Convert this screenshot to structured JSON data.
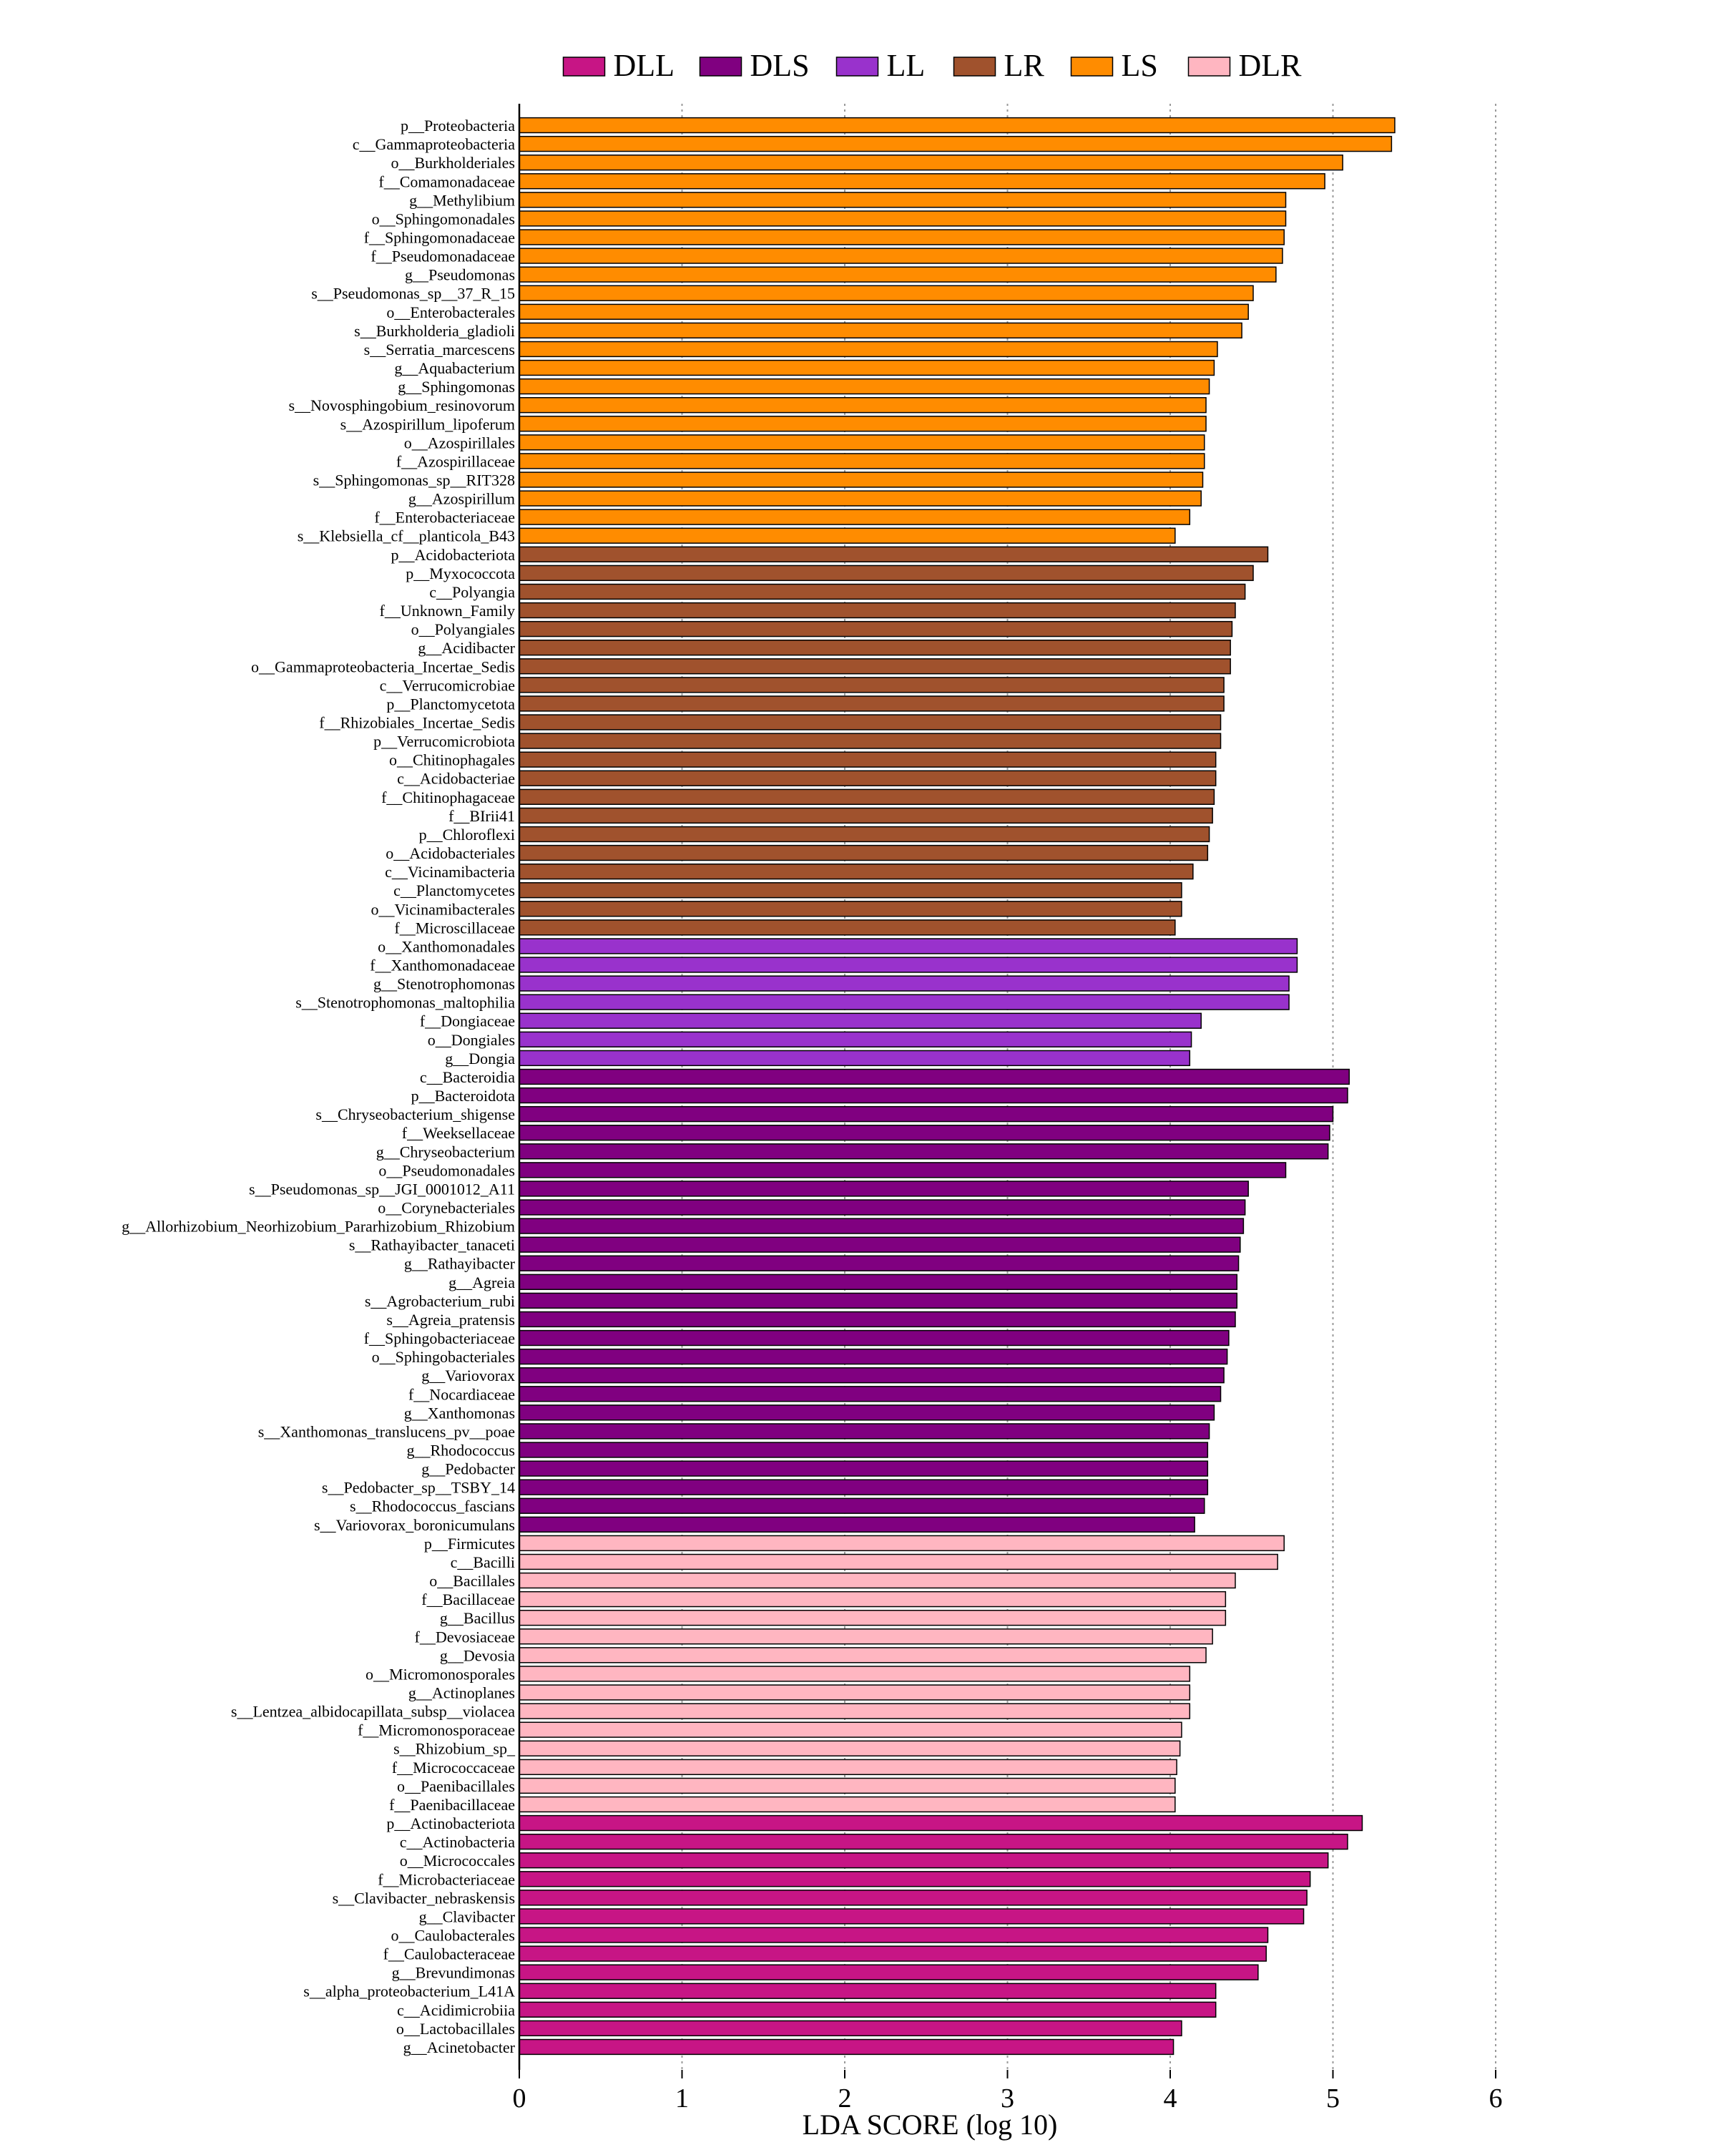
{
  "chart_data": {
    "type": "bar",
    "orientation": "horizontal",
    "xlabel": "LDA SCORE (log 10)",
    "xlim": [
      0,
      6
    ],
    "xticks": [
      0,
      1,
      2,
      3,
      4,
      5,
      6
    ],
    "grid": "vertical dotted",
    "legend_position": "top-center",
    "legend": [
      {
        "name": "DLL",
        "color": "#C71585"
      },
      {
        "name": "DLS",
        "color": "#800080"
      },
      {
        "name": "LL",
        "color": "#9932CC"
      },
      {
        "name": "LR",
        "color": "#A0522D"
      },
      {
        "name": "LS",
        "color": "#FF8C00"
      },
      {
        "name": "DLR",
        "color": "#FFB6C1"
      }
    ],
    "bars": [
      {
        "label": "p__Proteobacteria",
        "group": "LS",
        "value": 5.38
      },
      {
        "label": "c__Gammaproteobacteria",
        "group": "LS",
        "value": 5.36
      },
      {
        "label": "o__Burkholderiales",
        "group": "LS",
        "value": 5.06
      },
      {
        "label": "f__Comamonadaceae",
        "group": "LS",
        "value": 4.95
      },
      {
        "label": "g__Methylibium",
        "group": "LS",
        "value": 4.71
      },
      {
        "label": "o__Sphingomonadales",
        "group": "LS",
        "value": 4.71
      },
      {
        "label": "f__Sphingomonadaceae",
        "group": "LS",
        "value": 4.7
      },
      {
        "label": "f__Pseudomonadaceae",
        "group": "LS",
        "value": 4.69
      },
      {
        "label": "g__Pseudomonas",
        "group": "LS",
        "value": 4.65
      },
      {
        "label": "s__Pseudomonas_sp__37_R_15",
        "group": "LS",
        "value": 4.51
      },
      {
        "label": "o__Enterobacterales",
        "group": "LS",
        "value": 4.48
      },
      {
        "label": "s__Burkholderia_gladioli",
        "group": "LS",
        "value": 4.44
      },
      {
        "label": "s__Serratia_marcescens",
        "group": "LS",
        "value": 4.29
      },
      {
        "label": "g__Aquabacterium",
        "group": "LS",
        "value": 4.27
      },
      {
        "label": "g__Sphingomonas",
        "group": "LS",
        "value": 4.24
      },
      {
        "label": "s__Novosphingobium_resinovorum",
        "group": "LS",
        "value": 4.22
      },
      {
        "label": "s__Azospirillum_lipoferum",
        "group": "LS",
        "value": 4.22
      },
      {
        "label": "o__Azospirillales",
        "group": "LS",
        "value": 4.21
      },
      {
        "label": "f__Azospirillaceae",
        "group": "LS",
        "value": 4.21
      },
      {
        "label": "s__Sphingomonas_sp__RIT328",
        "group": "LS",
        "value": 4.2
      },
      {
        "label": "g__Azospirillum",
        "group": "LS",
        "value": 4.19
      },
      {
        "label": "f__Enterobacteriaceae",
        "group": "LS",
        "value": 4.12
      },
      {
        "label": "s__Klebsiella_cf__planticola_B43",
        "group": "LS",
        "value": 4.03
      },
      {
        "label": "p__Acidobacteriota",
        "group": "LR",
        "value": 4.6
      },
      {
        "label": "p__Myxococcota",
        "group": "LR",
        "value": 4.51
      },
      {
        "label": "c__Polyangia",
        "group": "LR",
        "value": 4.46
      },
      {
        "label": "f__Unknown_Family",
        "group": "LR",
        "value": 4.4
      },
      {
        "label": "o__Polyangiales",
        "group": "LR",
        "value": 4.38
      },
      {
        "label": "g__Acidibacter",
        "group": "LR",
        "value": 4.37
      },
      {
        "label": "o__Gammaproteobacteria_Incertae_Sedis",
        "group": "LR",
        "value": 4.37
      },
      {
        "label": "c__Verrucomicrobiae",
        "group": "LR",
        "value": 4.33
      },
      {
        "label": "p__Planctomycetota",
        "group": "LR",
        "value": 4.33
      },
      {
        "label": "f__Rhizobiales_Incertae_Sedis",
        "group": "LR",
        "value": 4.31
      },
      {
        "label": "p__Verrucomicrobiota",
        "group": "LR",
        "value": 4.31
      },
      {
        "label": "o__Chitinophagales",
        "group": "LR",
        "value": 4.28
      },
      {
        "label": "c__Acidobacteriae",
        "group": "LR",
        "value": 4.28
      },
      {
        "label": "f__Chitinophagaceae",
        "group": "LR",
        "value": 4.27
      },
      {
        "label": "f__BIrii41",
        "group": "LR",
        "value": 4.26
      },
      {
        "label": "p__Chloroflexi",
        "group": "LR",
        "value": 4.24
      },
      {
        "label": "o__Acidobacteriales",
        "group": "LR",
        "value": 4.23
      },
      {
        "label": "c__Vicinamibacteria",
        "group": "LR",
        "value": 4.14
      },
      {
        "label": "c__Planctomycetes",
        "group": "LR",
        "value": 4.07
      },
      {
        "label": "o__Vicinamibacterales",
        "group": "LR",
        "value": 4.07
      },
      {
        "label": "f__Microscillaceae",
        "group": "LR",
        "value": 4.03
      },
      {
        "label": "o__Xanthomonadales",
        "group": "LL",
        "value": 4.78
      },
      {
        "label": "f__Xanthomonadaceae",
        "group": "LL",
        "value": 4.78
      },
      {
        "label": "g__Stenotrophomonas",
        "group": "LL",
        "value": 4.73
      },
      {
        "label": "s__Stenotrophomonas_maltophilia",
        "group": "LL",
        "value": 4.73
      },
      {
        "label": "f__Dongiaceae",
        "group": "LL",
        "value": 4.19
      },
      {
        "label": "o__Dongiales",
        "group": "LL",
        "value": 4.13
      },
      {
        "label": "g__Dongia",
        "group": "LL",
        "value": 4.12
      },
      {
        "label": "c__Bacteroidia",
        "group": "DLS",
        "value": 5.1
      },
      {
        "label": "p__Bacteroidota",
        "group": "DLS",
        "value": 5.09
      },
      {
        "label": "s__Chryseobacterium_shigense",
        "group": "DLS",
        "value": 5.0
      },
      {
        "label": "f__Weeksellaceae",
        "group": "DLS",
        "value": 4.98
      },
      {
        "label": "g__Chryseobacterium",
        "group": "DLS",
        "value": 4.97
      },
      {
        "label": "o__Pseudomonadales",
        "group": "DLS",
        "value": 4.71
      },
      {
        "label": "s__Pseudomonas_sp__JGI_0001012_A11",
        "group": "DLS",
        "value": 4.48
      },
      {
        "label": "o__Corynebacteriales",
        "group": "DLS",
        "value": 4.46
      },
      {
        "label": "g__Allorhizobium_Neorhizobium_Pararhizobium_Rhizobium",
        "group": "DLS",
        "value": 4.45
      },
      {
        "label": "s__Rathayibacter_tanaceti",
        "group": "DLS",
        "value": 4.43
      },
      {
        "label": "g__Rathayibacter",
        "group": "DLS",
        "value": 4.42
      },
      {
        "label": "g__Agreia",
        "group": "DLS",
        "value": 4.41
      },
      {
        "label": "s__Agrobacterium_rubi",
        "group": "DLS",
        "value": 4.41
      },
      {
        "label": "s__Agreia_pratensis",
        "group": "DLS",
        "value": 4.4
      },
      {
        "label": "f__Sphingobacteriaceae",
        "group": "DLS",
        "value": 4.36
      },
      {
        "label": "o__Sphingobacteriales",
        "group": "DLS",
        "value": 4.35
      },
      {
        "label": "g__Variovorax",
        "group": "DLS",
        "value": 4.33
      },
      {
        "label": "f__Nocardiaceae",
        "group": "DLS",
        "value": 4.31
      },
      {
        "label": "g__Xanthomonas",
        "group": "DLS",
        "value": 4.27
      },
      {
        "label": "s__Xanthomonas_translucens_pv__poae",
        "group": "DLS",
        "value": 4.24
      },
      {
        "label": "g__Rhodococcus",
        "group": "DLS",
        "value": 4.23
      },
      {
        "label": "g__Pedobacter",
        "group": "DLS",
        "value": 4.23
      },
      {
        "label": "s__Pedobacter_sp__TSBY_14",
        "group": "DLS",
        "value": 4.23
      },
      {
        "label": "s__Rhodococcus_fascians",
        "group": "DLS",
        "value": 4.21
      },
      {
        "label": "s__Variovorax_boronicumulans",
        "group": "DLS",
        "value": 4.15
      },
      {
        "label": "p__Firmicutes",
        "group": "DLR",
        "value": 4.7
      },
      {
        "label": "c__Bacilli",
        "group": "DLR",
        "value": 4.66
      },
      {
        "label": "o__Bacillales",
        "group": "DLR",
        "value": 4.4
      },
      {
        "label": "f__Bacillaceae",
        "group": "DLR",
        "value": 4.34
      },
      {
        "label": "g__Bacillus",
        "group": "DLR",
        "value": 4.34
      },
      {
        "label": "f__Devosiaceae",
        "group": "DLR",
        "value": 4.26
      },
      {
        "label": "g__Devosia",
        "group": "DLR",
        "value": 4.22
      },
      {
        "label": "o__Micromonosporales",
        "group": "DLR",
        "value": 4.12
      },
      {
        "label": "g__Actinoplanes",
        "group": "DLR",
        "value": 4.12
      },
      {
        "label": "s__Lentzea_albidocapillata_subsp__violacea",
        "group": "DLR",
        "value": 4.12
      },
      {
        "label": "f__Micromonosporaceae",
        "group": "DLR",
        "value": 4.07
      },
      {
        "label": "s__Rhizobium_sp_",
        "group": "DLR",
        "value": 4.06
      },
      {
        "label": "f__Micrococcaceae",
        "group": "DLR",
        "value": 4.04
      },
      {
        "label": "o__Paenibacillales",
        "group": "DLR",
        "value": 4.03
      },
      {
        "label": "f__Paenibacillaceae",
        "group": "DLR",
        "value": 4.03
      },
      {
        "label": "p__Actinobacteriota",
        "group": "DLL",
        "value": 5.18
      },
      {
        "label": "c__Actinobacteria",
        "group": "DLL",
        "value": 5.09
      },
      {
        "label": "o__Micrococcales",
        "group": "DLL",
        "value": 4.97
      },
      {
        "label": "f__Microbacteriaceae",
        "group": "DLL",
        "value": 4.86
      },
      {
        "label": "s__Clavibacter_nebraskensis",
        "group": "DLL",
        "value": 4.84
      },
      {
        "label": "g__Clavibacter",
        "group": "DLL",
        "value": 4.82
      },
      {
        "label": "o__Caulobacterales",
        "group": "DLL",
        "value": 4.6
      },
      {
        "label": "f__Caulobacteraceae",
        "group": "DLL",
        "value": 4.59
      },
      {
        "label": "g__Brevundimonas",
        "group": "DLL",
        "value": 4.54
      },
      {
        "label": "s__alpha_proteobacterium_L41A",
        "group": "DLL",
        "value": 4.28
      },
      {
        "label": "c__Acidimicrobiia",
        "group": "DLL",
        "value": 4.28
      },
      {
        "label": "o__Lactobacillales",
        "group": "DLL",
        "value": 4.07
      },
      {
        "label": "g__Acinetobacter",
        "group": "DLL",
        "value": 4.02
      }
    ]
  }
}
